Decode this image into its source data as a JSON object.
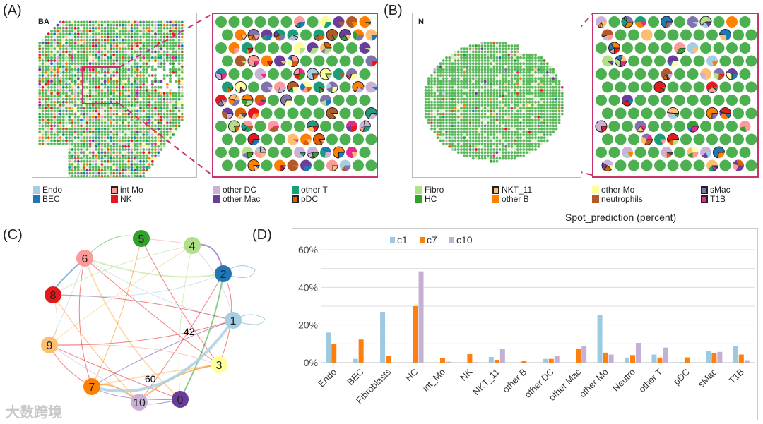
{
  "panels": {
    "a": "(A)",
    "b": "(B)",
    "c": "(C)",
    "d": "(D)"
  },
  "panel_a": {
    "tag": "BA"
  },
  "panel_b": {
    "tag": "N"
  },
  "legend_a": [
    {
      "label": "Endo",
      "color": "#a6cee3",
      "outlined": false
    },
    {
      "label": "BEC",
      "color": "#1f78b4",
      "outlined": false
    },
    {
      "label": "int Mo",
      "color": "#fb9a99",
      "outlined": true
    },
    {
      "label": "NK",
      "color": "#e31a1c",
      "outlined": false
    },
    {
      "label": "other DC",
      "color": "#cab2d6",
      "outlined": false
    },
    {
      "label": "other Mac",
      "color": "#6a3d9a",
      "outlined": false
    },
    {
      "label": "other T",
      "color": "#1b9e77",
      "outlined": false
    },
    {
      "label": "pDC",
      "color": "#d95f02",
      "outlined": true
    }
  ],
  "legend_b": [
    {
      "label": "Fibro",
      "color": "#b2df8a",
      "outlined": false
    },
    {
      "label": "HC",
      "color": "#33a02c",
      "outlined": false
    },
    {
      "label": "NKT_11",
      "color": "#fdbf6f",
      "outlined": true
    },
    {
      "label": "other B",
      "color": "#ff7f00",
      "outlined": false
    },
    {
      "label": "other Mo",
      "color": "#ffff99",
      "outlined": false
    },
    {
      "label": "neutrophils",
      "color": "#b15928",
      "outlined": false
    },
    {
      "label": "sMac",
      "color": "#8073ac",
      "outlined": true
    },
    {
      "label": "T1B",
      "color": "#e7298a",
      "outlined": true
    }
  ],
  "legend_title": "Spot_prediction (percent)",
  "network": {
    "nodes": [
      {
        "id": "0",
        "color": "#6a3d9a"
      },
      {
        "id": "1",
        "color": "#a6cee3"
      },
      {
        "id": "2",
        "color": "#1f78b4"
      },
      {
        "id": "3",
        "color": "#ffff99"
      },
      {
        "id": "4",
        "color": "#b2df8a"
      },
      {
        "id": "5",
        "color": "#33a02c"
      },
      {
        "id": "6",
        "color": "#fb9a99"
      },
      {
        "id": "7",
        "color": "#ff7f00"
      },
      {
        "id": "8",
        "color": "#e31a1c"
      },
      {
        "id": "9",
        "color": "#fdbf6f"
      },
      {
        "id": "10",
        "color": "#cab2d6"
      }
    ],
    "edge_labels": {
      "big1": "42",
      "big2": "60"
    }
  },
  "watermark": "大数跨境",
  "chart_data": {
    "type": "bar",
    "title": "",
    "xlabel": "",
    "ylabel": "",
    "ylim": [
      0,
      60
    ],
    "yticks": [
      "0%",
      "20%",
      "40%",
      "60%"
    ],
    "grid": true,
    "legend_position": "top-left",
    "categories": [
      "Endo",
      "BEC",
      "Fibroblasts",
      "HC",
      "int_Mo",
      "NK",
      "NKT_11",
      "other B",
      "other DC",
      "other Mac",
      "other Mo",
      "Neutro",
      "other T",
      "pDC",
      "sMac",
      "T1B"
    ],
    "series": [
      {
        "name": "c1",
        "color": "#9ecae1",
        "values": [
          16,
          2,
          27,
          0,
          0,
          0,
          3,
          0,
          2,
          0.2,
          25.5,
          2.7,
          4.3,
          0.3,
          6,
          9
        ]
      },
      {
        "name": "c7",
        "color": "#ff7f0e",
        "values": [
          10,
          12.3,
          3.5,
          30,
          2.5,
          4.5,
          1.5,
          1,
          2,
          7.5,
          5.3,
          4,
          2.7,
          2.8,
          5,
          4.3
        ]
      },
      {
        "name": "c10",
        "color": "#c5b0d5",
        "values": [
          0,
          0,
          0,
          48.5,
          0.5,
          0.3,
          7.5,
          0,
          3.5,
          8.8,
          4.3,
          10.5,
          8,
          0,
          5.7,
          1.3
        ]
      }
    ]
  }
}
